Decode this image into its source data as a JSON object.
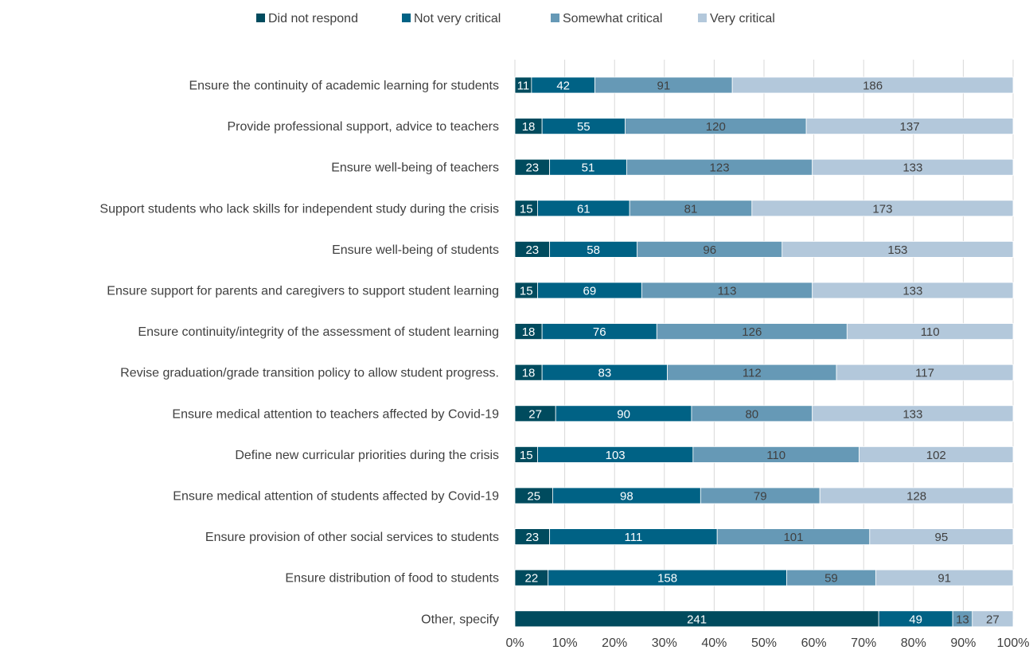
{
  "chart_data": {
    "type": "bar",
    "orientation": "horizontal",
    "stacked": "percent",
    "title": "",
    "xlabel": "",
    "ylabel": "",
    "xlim": [
      0,
      100
    ],
    "x_ticks": [
      "0%",
      "10%",
      "20%",
      "30%",
      "40%",
      "50%",
      "60%",
      "70%",
      "80%",
      "90%",
      "100%"
    ],
    "grid": "vertical",
    "legend_position": "top",
    "categories": [
      "Ensure the continuity of academic learning for students",
      "Provide professional support, advice to teachers",
      "Ensure well-being of teachers",
      "Support students who lack skills for independent study during the crisis",
      "Ensure well-being of students",
      "Ensure support for parents and caregivers to support student learning",
      "Ensure continuity/integrity of the assessment of student learning",
      "Revise graduation/grade transition policy to allow student progress.",
      "Ensure medical attention to teachers affected by Covid-19",
      "Define new curricular priorities during the crisis",
      "Ensure medical attention of students affected by Covid-19",
      "Ensure provision of other social services to students",
      "Ensure distribution of food to students",
      "Other, specify"
    ],
    "series": [
      {
        "name": "Did not respond",
        "color": "#004b5e",
        "label_color": "#ffffff",
        "values": [
          11,
          18,
          23,
          15,
          23,
          15,
          18,
          18,
          27,
          15,
          25,
          23,
          22,
          241
        ]
      },
      {
        "name": "Not very critical",
        "color": "#006285",
        "label_color": "#ffffff",
        "values": [
          42,
          55,
          51,
          61,
          58,
          69,
          76,
          83,
          90,
          103,
          98,
          111,
          158,
          49
        ]
      },
      {
        "name": "Somewhat critical",
        "color": "#6699b6",
        "label_color": "#404040",
        "values": [
          91,
          120,
          123,
          81,
          96,
          113,
          126,
          112,
          80,
          110,
          79,
          101,
          59,
          13
        ]
      },
      {
        "name": "Very critical",
        "color": "#b3c8db",
        "label_color": "#404040",
        "values": [
          186,
          137,
          133,
          173,
          153,
          133,
          110,
          117,
          133,
          102,
          128,
          95,
          91,
          27
        ]
      }
    ]
  }
}
